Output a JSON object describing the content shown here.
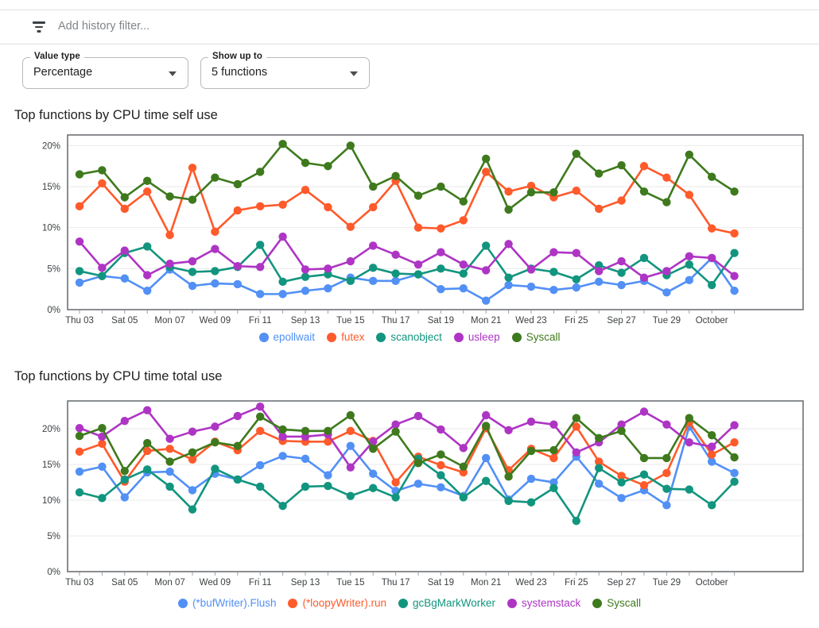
{
  "filter_bar": {
    "placeholder": "Add history filter..."
  },
  "controls": {
    "value_type": {
      "label": "Value type",
      "value": "Percentage"
    },
    "show_up_to": {
      "label": "Show up to",
      "value": "5 functions"
    }
  },
  "axis_style": {
    "grid_color": "#e9e9e9",
    "frame_color": "#6e7276",
    "tick_color": "#9aa0a6",
    "text_color": "#3c4043"
  },
  "chart_data": [
    {
      "type": "line",
      "title": "Top functions by CPU time self use",
      "x_tick_labels": [
        "Thu 03",
        "Sat 05",
        "Mon 07",
        "Wed 09",
        "Fri 11",
        "Sep 13",
        "Tue 15",
        "Thu 17",
        "Sat 19",
        "Mon 21",
        "Wed 23",
        "Fri 25",
        "Sep 27",
        "Tue 29",
        "October"
      ],
      "points_per_label": 2,
      "ylabel_suffix": "%",
      "yticks": [
        0,
        5,
        10,
        15,
        20
      ],
      "ylim": [
        0,
        21.3
      ],
      "grid": true,
      "legend_position": "bottom",
      "series": [
        {
          "name": "epollwait",
          "color": "#5290f5",
          "values": [
            3.3,
            4.1,
            3.8,
            2.3,
            4.9,
            2.9,
            3.2,
            3.1,
            1.9,
            1.9,
            2.3,
            2.6,
            3.9,
            3.5,
            3.5,
            4.3,
            2.5,
            2.6,
            1.1,
            3.0,
            2.8,
            2.4,
            2.7,
            3.4,
            3.0,
            3.5,
            2.1,
            3.6,
            6.3,
            2.3
          ]
        },
        {
          "name": "futex",
          "color": "#ff5a2b",
          "values": [
            12.6,
            15.4,
            12.3,
            14.4,
            9.1,
            17.3,
            9.5,
            12.1,
            12.6,
            12.8,
            14.6,
            12.5,
            10.1,
            12.5,
            15.7,
            10.0,
            9.9,
            10.9,
            16.8,
            14.4,
            15.1,
            13.7,
            14.5,
            12.3,
            13.3,
            17.5,
            16.1,
            14.0,
            9.9,
            9.3
          ]
        },
        {
          "name": "scanobject",
          "color": "#12957e",
          "values": [
            4.7,
            4.1,
            6.9,
            7.7,
            5.2,
            4.6,
            4.7,
            5.2,
            7.9,
            3.4,
            4.0,
            4.3,
            3.5,
            5.1,
            4.4,
            4.3,
            5.0,
            4.4,
            7.8,
            3.9,
            5.0,
            4.6,
            3.7,
            5.4,
            4.5,
            6.3,
            4.2,
            5.5,
            3.0,
            6.9
          ]
        },
        {
          "name": "usleep",
          "color": "#ae35c4",
          "values": [
            8.3,
            5.1,
            7.2,
            4.2,
            5.6,
            5.9,
            7.4,
            5.3,
            5.2,
            8.9,
            4.9,
            5.0,
            5.9,
            7.8,
            6.7,
            5.5,
            7.0,
            5.5,
            4.8,
            8.0,
            4.9,
            7.0,
            6.9,
            4.7,
            5.9,
            3.9,
            4.7,
            6.5,
            6.3,
            4.1
          ]
        },
        {
          "name": "Syscall",
          "color": "#3e7a1d",
          "values": [
            16.5,
            17.0,
            13.7,
            15.7,
            13.8,
            13.4,
            16.1,
            15.3,
            16.8,
            20.2,
            17.9,
            17.5,
            20.0,
            15.0,
            16.3,
            13.9,
            15.0,
            13.2,
            18.4,
            12.2,
            14.3,
            14.3,
            19.0,
            16.6,
            17.6,
            14.4,
            13.1,
            18.9,
            16.2,
            14.4
          ]
        }
      ]
    },
    {
      "type": "line",
      "title": "Top functions by CPU time total use",
      "x_tick_labels": [
        "Thu 03",
        "Sat 05",
        "Mon 07",
        "Wed 09",
        "Fri 11",
        "Sep 13",
        "Tue 15",
        "Thu 17",
        "Sat 19",
        "Mon 21",
        "Wed 23",
        "Fri 25",
        "Sep 27",
        "Tue 29",
        "October"
      ],
      "points_per_label": 2,
      "ylabel_suffix": "%",
      "yticks": [
        0,
        5,
        10,
        15,
        20
      ],
      "ylim": [
        0,
        23.9
      ],
      "grid": true,
      "legend_position": "bottom",
      "series": [
        {
          "name": "(*bufWriter).Flush",
          "color": "#5290f5",
          "values": [
            14.0,
            14.7,
            10.4,
            13.9,
            14.0,
            11.4,
            13.7,
            12.9,
            14.9,
            16.2,
            15.8,
            13.5,
            17.6,
            13.7,
            11.3,
            12.3,
            11.8,
            10.6,
            15.9,
            10.1,
            13.0,
            12.5,
            16.1,
            12.3,
            10.3,
            11.4,
            9.3,
            20.3,
            15.4,
            13.8
          ]
        },
        {
          "name": "(*loopyWriter).run",
          "color": "#ff5a2b",
          "values": [
            16.8,
            17.9,
            12.6,
            16.9,
            17.2,
            15.7,
            18.2,
            17.0,
            19.7,
            18.3,
            18.2,
            18.2,
            19.7,
            18.3,
            12.5,
            16.1,
            14.9,
            13.9,
            20.1,
            14.2,
            17.2,
            15.9,
            20.3,
            15.4,
            13.4,
            12.1,
            13.8,
            20.9,
            16.4,
            18.1
          ]
        },
        {
          "name": "gcBgMarkWorker",
          "color": "#12957e",
          "values": [
            11.1,
            10.3,
            12.9,
            14.3,
            11.9,
            8.7,
            14.4,
            12.9,
            11.9,
            9.2,
            11.9,
            12.0,
            10.6,
            11.7,
            10.4,
            15.8,
            13.5,
            10.4,
            12.7,
            9.9,
            9.7,
            11.7,
            7.1,
            14.5,
            12.5,
            13.6,
            11.6,
            11.5,
            9.3,
            12.6
          ]
        },
        {
          "name": "systemstack",
          "color": "#ae35c4",
          "values": [
            20.1,
            18.9,
            21.1,
            22.6,
            18.6,
            19.6,
            20.3,
            21.8,
            23.1,
            18.9,
            18.9,
            19.2,
            14.6,
            18.2,
            20.6,
            21.8,
            19.9,
            17.3,
            21.9,
            19.8,
            21.0,
            20.6,
            16.7,
            18.1,
            20.6,
            22.4,
            20.6,
            18.1,
            17.5,
            20.5
          ]
        },
        {
          "name": "Syscall",
          "color": "#3e7a1d",
          "values": [
            19.0,
            20.1,
            14.1,
            18.0,
            15.4,
            16.7,
            18.1,
            17.6,
            21.7,
            19.9,
            19.7,
            19.7,
            21.9,
            17.2,
            19.6,
            15.2,
            16.4,
            14.7,
            20.4,
            13.3,
            16.9,
            17.0,
            21.5,
            18.7,
            19.7,
            15.9,
            15.9,
            21.5,
            19.1,
            16.0
          ]
        }
      ]
    }
  ]
}
